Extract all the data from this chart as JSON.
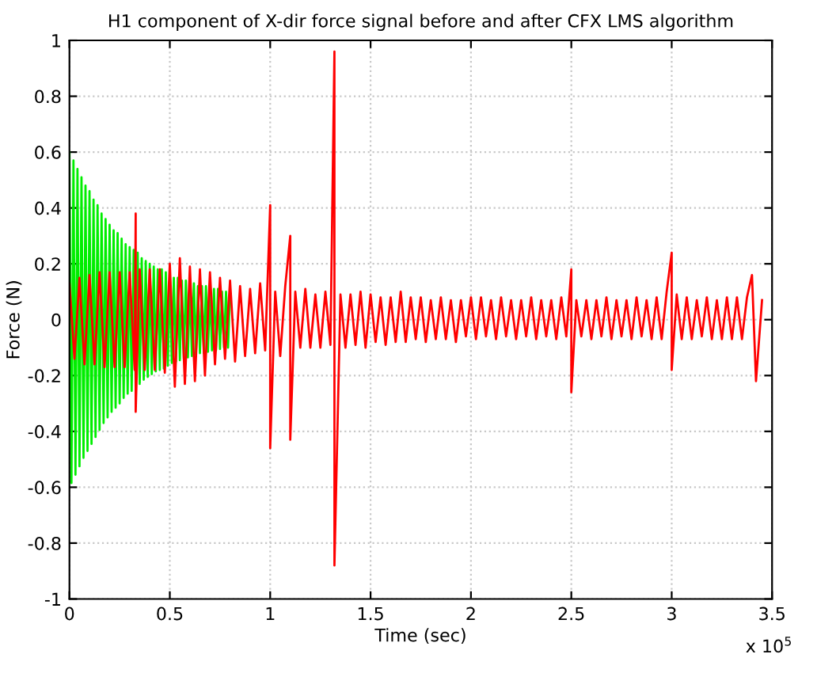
{
  "chart_data": {
    "type": "line",
    "title": "H1 component of X-dir force signal before and after CFX LMS algorithm",
    "xlabel": "Time (sec)",
    "ylabel": "Force (N)",
    "annotations": [
      "x 10$^{5}$"
    ],
    "xlim": [
      0,
      3.5
    ],
    "xticks": [
      0,
      0.5,
      1,
      1.5,
      2,
      2.5,
      3,
      3.5
    ],
    "ylim": [
      -1,
      1
    ],
    "yticks": [
      -1,
      -0.8,
      -0.6,
      -0.4,
      -0.2,
      0,
      0.2,
      0.4,
      0.6,
      0.8,
      1
    ],
    "grid": true,
    "marker": "none",
    "line_style": "solid",
    "series": [
      {
        "color": "#00ee00",
        "x": [
          0,
          0.01,
          0.02,
          0.03,
          0.04,
          0.05,
          0.06,
          0.07,
          0.08,
          0.09,
          0.1,
          0.11,
          0.12,
          0.13,
          0.14,
          0.15,
          0.16,
          0.17,
          0.18,
          0.19,
          0.2,
          0.21,
          0.22,
          0.23,
          0.24,
          0.25,
          0.26,
          0.27,
          0.28,
          0.29,
          0.3,
          0.31,
          0.32,
          0.33,
          0.34,
          0.35,
          0.36,
          0.37,
          0.38,
          0.39,
          0.4,
          0.41,
          0.42,
          0.43,
          0.44,
          0.45,
          0.46,
          0.47,
          0.48,
          0.49,
          0.5,
          0.51,
          0.52,
          0.53,
          0.54,
          0.55,
          0.56,
          0.57,
          0.58,
          0.59,
          0.6,
          0.61,
          0.62,
          0.63,
          0.64,
          0.65,
          0.66,
          0.67,
          0.68,
          0.69,
          0.7,
          0.71,
          0.72,
          0.73,
          0.74,
          0.75,
          0.76,
          0.77,
          0.78,
          0.79,
          0.8
        ],
        "values": [
          0.6,
          -0.585,
          0.57,
          -0.555,
          0.54,
          -0.525,
          0.51,
          -0.495,
          0.48,
          -0.47,
          0.46,
          -0.445,
          0.43,
          -0.42,
          0.41,
          -0.395,
          0.38,
          -0.37,
          0.36,
          -0.35,
          0.34,
          -0.33,
          0.32,
          -0.315,
          0.31,
          -0.3,
          0.29,
          -0.28,
          0.27,
          -0.265,
          0.26,
          -0.255,
          0.25,
          -0.245,
          0.24,
          -0.23,
          0.22,
          -0.215,
          0.21,
          -0.205,
          0.2,
          -0.195,
          0.19,
          -0.185,
          0.18,
          -0.18,
          0.18,
          -0.175,
          0.17,
          -0.165,
          0.16,
          -0.155,
          0.15,
          -0.15,
          0.15,
          -0.145,
          0.14,
          -0.14,
          0.14,
          -0.135,
          0.13,
          -0.13,
          0.13,
          -0.125,
          0.12,
          -0.12,
          0.12,
          -0.12,
          0.12,
          -0.115,
          0.11,
          -0.11,
          0.11,
          -0.11,
          0.11,
          -0.105,
          0.1,
          -0.1,
          0.1,
          -0.1,
          0.1
        ]
      },
      {
        "color": "#ff0000",
        "x": [
          0,
          0.025,
          0.05,
          0.075,
          0.1,
          0.125,
          0.15,
          0.175,
          0.2,
          0.225,
          0.25,
          0.275,
          0.3,
          0.325,
          0.33,
          0.33,
          0.35,
          0.375,
          0.4,
          0.425,
          0.45,
          0.475,
          0.5,
          0.525,
          0.55,
          0.575,
          0.6,
          0.625,
          0.65,
          0.675,
          0.7,
          0.725,
          0.75,
          0.775,
          0.8,
          0.825,
          0.85,
          0.875,
          0.9,
          0.925,
          0.95,
          0.975,
          1.0,
          1.0,
          1.025,
          1.05,
          1.075,
          1.1,
          1.1,
          1.125,
          1.15,
          1.175,
          1.2,
          1.225,
          1.25,
          1.275,
          1.3,
          1.32,
          1.32,
          1.35,
          1.375,
          1.4,
          1.425,
          1.45,
          1.475,
          1.5,
          1.525,
          1.55,
          1.575,
          1.6,
          1.625,
          1.65,
          1.675,
          1.7,
          1.725,
          1.75,
          1.775,
          1.8,
          1.825,
          1.85,
          1.875,
          1.9,
          1.925,
          1.95,
          1.975,
          2.0,
          2.025,
          2.05,
          2.075,
          2.1,
          2.125,
          2.15,
          2.175,
          2.2,
          2.225,
          2.25,
          2.275,
          2.3,
          2.325,
          2.35,
          2.375,
          2.4,
          2.425,
          2.45,
          2.475,
          2.5,
          2.5,
          2.525,
          2.55,
          2.575,
          2.6,
          2.625,
          2.65,
          2.675,
          2.7,
          2.725,
          2.75,
          2.775,
          2.8,
          2.825,
          2.85,
          2.875,
          2.9,
          2.925,
          2.95,
          2.975,
          3.0,
          3.0,
          3.025,
          3.05,
          3.075,
          3.1,
          3.125,
          3.15,
          3.175,
          3.2,
          3.225,
          3.25,
          3.275,
          3.3,
          3.325,
          3.35,
          3.375,
          3.4,
          3.42,
          3.45
        ],
        "values": [
          0.13,
          -0.14,
          0.15,
          -0.16,
          0.16,
          -0.16,
          0.17,
          -0.17,
          0.17,
          -0.17,
          0.17,
          -0.17,
          0.17,
          -0.18,
          0.38,
          -0.33,
          0.18,
          -0.18,
          0.18,
          -0.18,
          0.18,
          -0.19,
          0.2,
          -0.24,
          0.22,
          -0.23,
          0.19,
          -0.22,
          0.18,
          -0.2,
          0.17,
          -0.16,
          0.15,
          -0.14,
          0.14,
          -0.15,
          0.12,
          -0.13,
          0.11,
          -0.12,
          0.13,
          -0.11,
          0.41,
          -0.46,
          0.1,
          -0.13,
          0.12,
          0.3,
          -0.43,
          0.1,
          -0.1,
          0.11,
          -0.1,
          0.09,
          -0.1,
          0.1,
          -0.09,
          0.96,
          -0.88,
          0.09,
          -0.1,
          0.09,
          -0.09,
          0.1,
          -0.1,
          0.09,
          -0.08,
          0.08,
          -0.09,
          0.08,
          -0.08,
          0.1,
          -0.08,
          0.08,
          -0.07,
          0.08,
          -0.08,
          0.07,
          -0.07,
          0.08,
          -0.07,
          0.07,
          -0.08,
          0.07,
          -0.06,
          0.08,
          -0.07,
          0.08,
          -0.06,
          0.07,
          -0.07,
          0.08,
          -0.06,
          0.07,
          -0.07,
          0.07,
          -0.06,
          0.08,
          -0.07,
          0.07,
          -0.06,
          0.07,
          -0.07,
          0.08,
          -0.06,
          0.18,
          -0.26,
          0.07,
          -0.06,
          0.07,
          -0.07,
          0.07,
          -0.06,
          0.08,
          -0.07,
          0.07,
          -0.06,
          0.07,
          -0.07,
          0.08,
          -0.06,
          0.07,
          -0.07,
          0.08,
          -0.07,
          0.1,
          0.24,
          -0.18,
          0.09,
          -0.07,
          0.08,
          -0.07,
          0.07,
          -0.06,
          0.08,
          -0.07,
          0.07,
          -0.07,
          0.08,
          -0.07,
          0.08,
          -0.07,
          0.08,
          0.16,
          -0.22,
          0.07
        ]
      }
    ]
  }
}
